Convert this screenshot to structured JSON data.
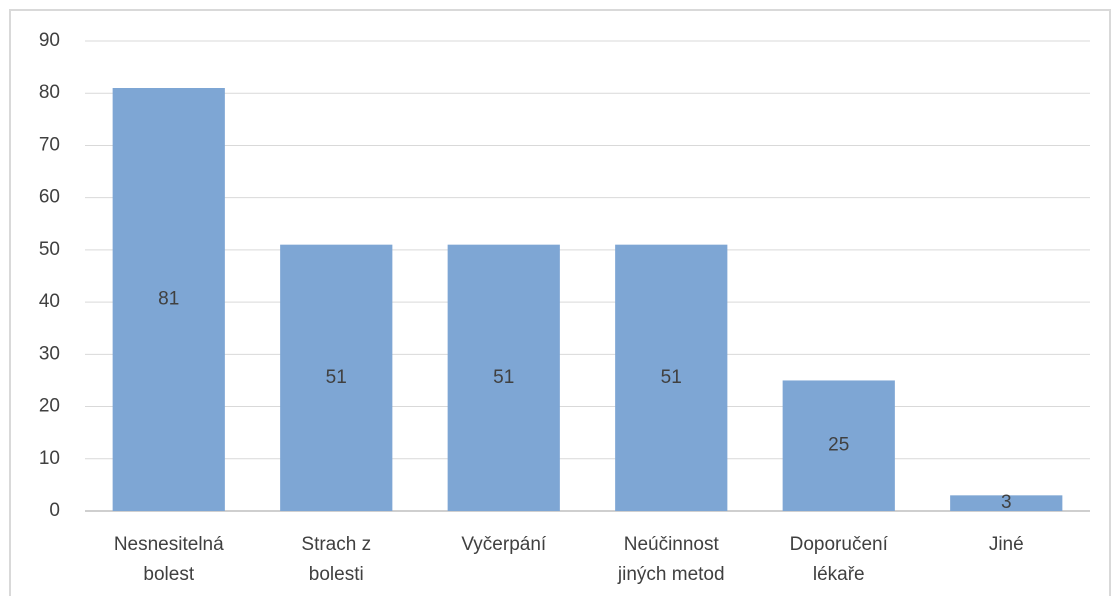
{
  "chart_data": {
    "type": "bar",
    "categories": [
      "Nesnesitelná\nbolest",
      "Strach z\nbolesti",
      "Vyčerpání",
      "Neúčinnost\njiných metod",
      "Doporučení\nlékaře",
      "Jiné"
    ],
    "values": [
      81,
      51,
      51,
      51,
      25,
      3
    ],
    "color": "#7ea6d4",
    "ylim": [
      0,
      90
    ],
    "yticks": [
      0,
      10,
      20,
      30,
      40,
      50,
      60,
      70,
      80,
      90
    ],
    "grid": true
  }
}
